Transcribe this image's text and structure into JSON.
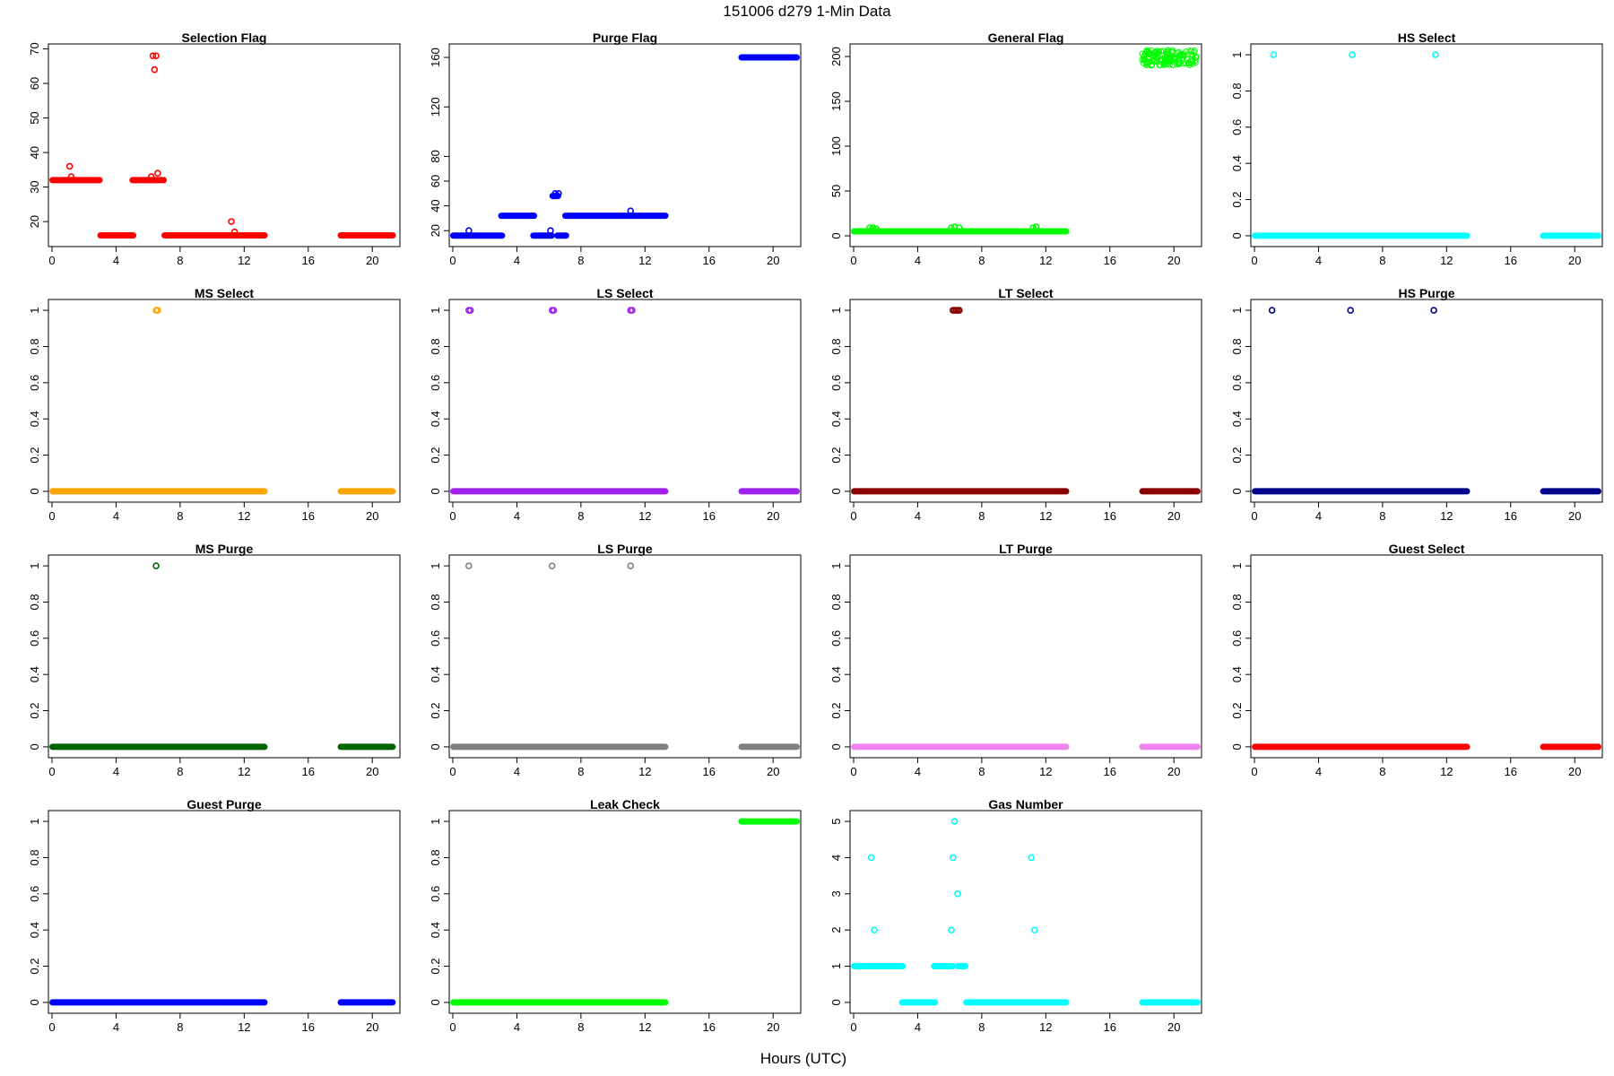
{
  "figure": {
    "title": "151006   d279   1-Min Data",
    "xlabel": "Hours (UTC)"
  },
  "chart_data": [
    {
      "type": "scatter",
      "title": "Selection Flag",
      "color": "#ff0000",
      "xlim": [
        0,
        21.5
      ],
      "ylim": [
        13.8,
        70.4
      ],
      "xticks": [
        0,
        4,
        8,
        12,
        16,
        20
      ],
      "yticks": [
        20,
        30,
        40,
        50,
        60,
        70
      ],
      "segments": [
        [
          0,
          3,
          32
        ],
        [
          3,
          5.1,
          16
        ],
        [
          5,
          6.5,
          32
        ],
        [
          6.5,
          7,
          32
        ],
        [
          7,
          13.3,
          16
        ],
        [
          18,
          21.3,
          16
        ]
      ],
      "points": [
        [
          1.1,
          36
        ],
        [
          1.2,
          33
        ],
        [
          6.2,
          33
        ],
        [
          6.3,
          68
        ],
        [
          6.5,
          68
        ],
        [
          6.4,
          64
        ],
        [
          6.6,
          34
        ],
        [
          11.2,
          20
        ],
        [
          11.4,
          17
        ]
      ]
    },
    {
      "type": "scatter",
      "title": "Purge Flag",
      "color": "#0000ff",
      "xlim": [
        0,
        21.5
      ],
      "ylim": [
        10,
        168
      ],
      "xticks": [
        0,
        4,
        8,
        12,
        16,
        20
      ],
      "yticks": [
        20,
        40,
        60,
        80,
        120,
        160
      ],
      "segments": [
        [
          0,
          3.1,
          16
        ],
        [
          3,
          5.1,
          32
        ],
        [
          5,
          6.2,
          16
        ],
        [
          6.2,
          6.6,
          48
        ],
        [
          6.5,
          7.1,
          16
        ],
        [
          7,
          13.3,
          32
        ],
        [
          18,
          21.5,
          160
        ]
      ],
      "points": [
        [
          1,
          20
        ],
        [
          6.1,
          20
        ],
        [
          6.4,
          50
        ],
        [
          6.6,
          50
        ],
        [
          11.1,
          36
        ]
      ]
    },
    {
      "type": "scatter",
      "title": "General Flag",
      "color": "#00ff00",
      "xlim": [
        0,
        21.5
      ],
      "ylim": [
        -8,
        210
      ],
      "xticks": [
        0,
        4,
        8,
        12,
        16,
        20
      ],
      "yticks": [
        0,
        50,
        100,
        150,
        200
      ],
      "segments": [
        [
          0,
          13.3,
          5
        ]
      ],
      "points": [
        [
          1,
          9
        ],
        [
          1.2,
          9
        ],
        [
          1.4,
          8
        ],
        [
          6.1,
          9
        ],
        [
          6.3,
          10
        ],
        [
          6.6,
          9
        ],
        [
          11.2,
          9
        ],
        [
          11.4,
          10
        ]
      ],
      "cloud": {
        "x": [
          18,
          21.5
        ],
        "y": [
          190,
          207
        ]
      }
    },
    {
      "type": "scatter",
      "title": "HS Select",
      "color": "#00ffff",
      "xlim": [
        0,
        21.5
      ],
      "ylim": [
        -0.04,
        1.04
      ],
      "xticks": [
        0,
        4,
        8,
        12,
        16,
        20
      ],
      "yticks": [
        0,
        0.2,
        0.4,
        0.6,
        0.8,
        1
      ],
      "segments": [
        [
          0,
          13.3,
          0
        ],
        [
          18,
          21.5,
          0
        ]
      ],
      "points": [
        [
          1.2,
          1
        ],
        [
          6.1,
          1
        ],
        [
          11.3,
          1
        ]
      ]
    },
    {
      "type": "scatter",
      "title": "MS Select",
      "color": "#ffa500",
      "xlim": [
        0,
        21.5
      ],
      "ylim": [
        -0.04,
        1.04
      ],
      "xticks": [
        0,
        4,
        8,
        12,
        16,
        20
      ],
      "yticks": [
        0,
        0.2,
        0.4,
        0.6,
        0.8,
        1
      ],
      "segments": [
        [
          0,
          13.3,
          0
        ],
        [
          18,
          21.3,
          0
        ]
      ],
      "points": [
        [
          6.5,
          1
        ],
        [
          6.6,
          1
        ]
      ]
    },
    {
      "type": "scatter",
      "title": "LS Select",
      "color": "#a020f0",
      "xlim": [
        0,
        21.5
      ],
      "ylim": [
        -0.04,
        1.04
      ],
      "xticks": [
        0,
        4,
        8,
        12,
        16,
        20
      ],
      "yticks": [
        0,
        0.2,
        0.4,
        0.6,
        0.8,
        1
      ],
      "segments": [
        [
          0,
          13.3,
          0
        ],
        [
          18,
          21.5,
          0
        ]
      ],
      "points": [
        [
          1,
          1
        ],
        [
          1.1,
          1
        ],
        [
          6.2,
          1
        ],
        [
          6.3,
          1
        ],
        [
          11.1,
          1
        ],
        [
          11.2,
          1
        ]
      ]
    },
    {
      "type": "scatter",
      "title": "LT Select",
      "color": "#8b0000",
      "xlim": [
        0,
        21.5
      ],
      "ylim": [
        -0.04,
        1.04
      ],
      "xticks": [
        0,
        4,
        8,
        12,
        16,
        20
      ],
      "yticks": [
        0,
        0.2,
        0.4,
        0.6,
        0.8,
        1
      ],
      "segments": [
        [
          0,
          13.3,
          0
        ],
        [
          18,
          21.5,
          0
        ]
      ],
      "points": [
        [
          6.2,
          1
        ],
        [
          6.3,
          1
        ],
        [
          6.4,
          1
        ],
        [
          6.5,
          1
        ],
        [
          6.6,
          1
        ]
      ]
    },
    {
      "type": "scatter",
      "title": "HS Purge",
      "color": "#00008b",
      "xlim": [
        0,
        21.5
      ],
      "ylim": [
        -0.04,
        1.04
      ],
      "xticks": [
        0,
        4,
        8,
        12,
        16,
        20
      ],
      "yticks": [
        0,
        0.2,
        0.4,
        0.6,
        0.8,
        1
      ],
      "segments": [
        [
          0,
          13.3,
          0
        ],
        [
          18,
          21.5,
          0
        ]
      ],
      "points": [
        [
          1.1,
          1
        ],
        [
          6,
          1
        ],
        [
          11.2,
          1
        ]
      ]
    },
    {
      "type": "scatter",
      "title": "MS Purge",
      "color": "#006400",
      "xlim": [
        0,
        21.5
      ],
      "ylim": [
        -0.04,
        1.04
      ],
      "xticks": [
        0,
        4,
        8,
        12,
        16,
        20
      ],
      "yticks": [
        0,
        0.2,
        0.4,
        0.6,
        0.8,
        1
      ],
      "segments": [
        [
          0,
          13.3,
          0
        ],
        [
          18,
          21.3,
          0
        ]
      ],
      "points": [
        [
          6.5,
          1
        ]
      ]
    },
    {
      "type": "scatter",
      "title": "LS Purge",
      "color": "#808080",
      "xlim": [
        0,
        21.5
      ],
      "ylim": [
        -0.04,
        1.04
      ],
      "xticks": [
        0,
        4,
        8,
        12,
        16,
        20
      ],
      "yticks": [
        0,
        0.2,
        0.4,
        0.6,
        0.8,
        1
      ],
      "segments": [
        [
          0,
          13.3,
          0
        ],
        [
          18,
          21.5,
          0
        ]
      ],
      "points": [
        [
          1,
          1
        ],
        [
          6.2,
          1
        ],
        [
          11.1,
          1
        ]
      ]
    },
    {
      "type": "scatter",
      "title": "LT Purge",
      "color": "#ee82ee",
      "xlim": [
        0,
        21.5
      ],
      "ylim": [
        -0.04,
        1.04
      ],
      "xticks": [
        0,
        4,
        8,
        12,
        16,
        20
      ],
      "yticks": [
        0,
        0.2,
        0.4,
        0.6,
        0.8,
        1
      ],
      "segments": [
        [
          0,
          13.3,
          0
        ],
        [
          18,
          21.5,
          0
        ]
      ],
      "points": []
    },
    {
      "type": "scatter",
      "title": "Guest Select",
      "color": "#ff0000",
      "xlim": [
        0,
        21.5
      ],
      "ylim": [
        -0.04,
        1.04
      ],
      "xticks": [
        0,
        4,
        8,
        12,
        16,
        20
      ],
      "yticks": [
        0,
        0.2,
        0.4,
        0.6,
        0.8,
        1
      ],
      "segments": [
        [
          0,
          13.3,
          0
        ],
        [
          18,
          21.5,
          0
        ]
      ],
      "points": []
    },
    {
      "type": "scatter",
      "title": "Guest Purge",
      "color": "#0000ff",
      "xlim": [
        0,
        21.5
      ],
      "ylim": [
        -0.04,
        1.04
      ],
      "xticks": [
        0,
        4,
        8,
        12,
        16,
        20
      ],
      "yticks": [
        0,
        0.2,
        0.4,
        0.6,
        0.8,
        1
      ],
      "segments": [
        [
          0,
          13.3,
          0
        ],
        [
          18,
          21.3,
          0
        ]
      ],
      "points": []
    },
    {
      "type": "scatter",
      "title": "Leak Check",
      "color": "#00ff00",
      "xlim": [
        0,
        21.5
      ],
      "ylim": [
        -0.04,
        1.04
      ],
      "xticks": [
        0,
        4,
        8,
        12,
        16,
        20
      ],
      "yticks": [
        0,
        0.2,
        0.4,
        0.6,
        0.8,
        1
      ],
      "segments": [
        [
          0,
          13.3,
          0
        ],
        [
          18,
          21.5,
          1
        ]
      ],
      "points": []
    },
    {
      "type": "scatter",
      "title": "Gas Number",
      "color": "#00ffff",
      "xlim": [
        0,
        21.5
      ],
      "ylim": [
        -0.2,
        5.2
      ],
      "xticks": [
        0,
        4,
        8,
        12,
        16,
        20
      ],
      "yticks": [
        0,
        1,
        2,
        3,
        4,
        5
      ],
      "segments": [
        [
          0,
          3.1,
          1
        ],
        [
          3,
          5.1,
          0
        ],
        [
          5,
          6.2,
          1
        ],
        [
          6.5,
          7,
          1
        ],
        [
          7,
          13.3,
          0
        ],
        [
          18,
          21.5,
          0
        ]
      ],
      "points": [
        [
          1.1,
          4
        ],
        [
          1.3,
          2
        ],
        [
          6.1,
          2
        ],
        [
          6.2,
          4
        ],
        [
          6.3,
          5
        ],
        [
          6.5,
          3
        ],
        [
          11.1,
          4
        ],
        [
          11.3,
          2
        ]
      ]
    }
  ]
}
